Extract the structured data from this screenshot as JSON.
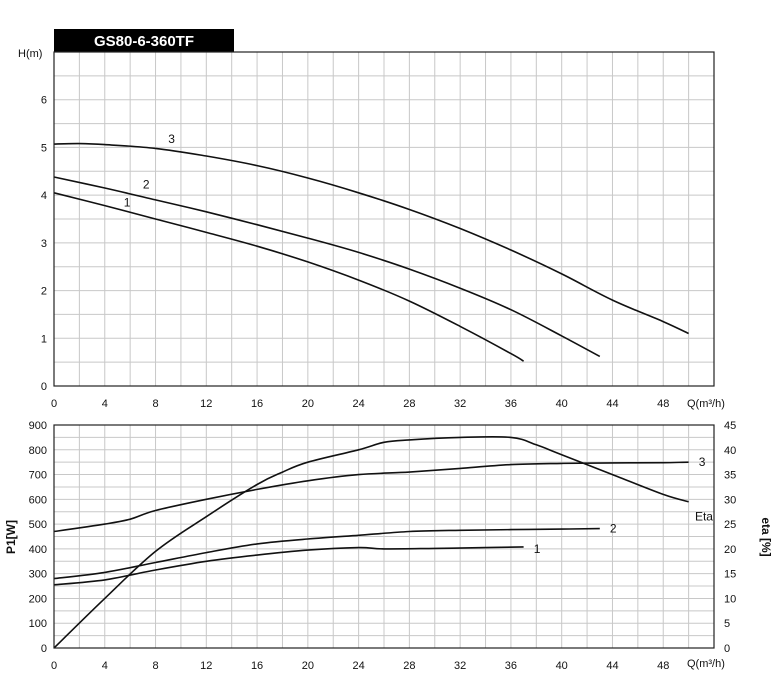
{
  "chart_data": [
    {
      "type": "line",
      "title": "GS80-6-360TF",
      "ylabel": "H(m)",
      "xlabel": "Q(m³/h)",
      "xlim": [
        0,
        52
      ],
      "ylim": [
        0,
        7
      ],
      "x_ticks": [
        0,
        4,
        8,
        12,
        16,
        20,
        24,
        28,
        32,
        36,
        40,
        44,
        48
      ],
      "y_ticks": [
        0,
        1,
        2,
        3,
        4,
        5,
        6
      ],
      "grid": true,
      "series": [
        {
          "name": "1",
          "x": [
            0,
            4,
            8,
            12,
            16,
            20,
            24,
            28,
            32,
            36,
            37
          ],
          "y": [
            4.05,
            3.78,
            3.5,
            3.22,
            2.93,
            2.6,
            2.22,
            1.78,
            1.25,
            0.68,
            0.52
          ]
        },
        {
          "name": "2",
          "x": [
            0,
            4,
            8,
            12,
            16,
            20,
            24,
            28,
            32,
            36,
            40,
            43
          ],
          "y": [
            4.38,
            4.15,
            3.9,
            3.65,
            3.38,
            3.1,
            2.8,
            2.45,
            2.05,
            1.6,
            1.05,
            0.62
          ]
        },
        {
          "name": "3",
          "x": [
            0,
            2,
            4,
            8,
            12,
            16,
            20,
            24,
            28,
            32,
            36,
            40,
            44,
            48,
            50
          ],
          "y": [
            5.07,
            5.08,
            5.06,
            4.98,
            4.82,
            4.62,
            4.36,
            4.05,
            3.7,
            3.3,
            2.85,
            2.35,
            1.8,
            1.35,
            1.1
          ]
        }
      ],
      "curve_labels": [
        {
          "text": "3",
          "x": 9,
          "y": 5.18
        },
        {
          "text": "2",
          "x": 7,
          "y": 4.22
        },
        {
          "text": "1",
          "x": 5.5,
          "y": 3.85
        }
      ]
    },
    {
      "type": "line",
      "xlabel": "Q(m³/h)",
      "ylabel": "P1[W]",
      "y2label": "eta [%]",
      "xlim": [
        0,
        52
      ],
      "ylim": [
        0,
        900
      ],
      "y2lim": [
        0,
        45
      ],
      "x_ticks": [
        0,
        4,
        8,
        12,
        16,
        20,
        24,
        28,
        32,
        36,
        40,
        44,
        48
      ],
      "y_ticks": [
        0,
        100,
        200,
        300,
        400,
        500,
        600,
        700,
        800,
        900
      ],
      "y2_ticks": [
        0,
        5,
        10,
        15,
        20,
        25,
        30,
        35,
        40,
        45
      ],
      "grid": true,
      "series": [
        {
          "name": "1",
          "axis": "left",
          "x": [
            0,
            4,
            8,
            12,
            16,
            20,
            24,
            26,
            30,
            34,
            37
          ],
          "y": [
            255,
            275,
            315,
            350,
            375,
            395,
            405,
            400,
            402,
            405,
            408
          ]
        },
        {
          "name": "2",
          "axis": "left",
          "x": [
            0,
            4,
            8,
            12,
            16,
            20,
            24,
            28,
            32,
            36,
            40,
            43
          ],
          "y": [
            280,
            305,
            345,
            385,
            420,
            440,
            455,
            470,
            475,
            478,
            480,
            482
          ]
        },
        {
          "name": "3",
          "axis": "left",
          "x": [
            0,
            4,
            6,
            8,
            12,
            16,
            20,
            24,
            28,
            32,
            36,
            40,
            44,
            48,
            50
          ],
          "y": [
            470,
            500,
            520,
            555,
            600,
            640,
            675,
            700,
            710,
            725,
            740,
            745,
            747,
            748,
            750
          ]
        },
        {
          "name": "Eta",
          "axis": "right",
          "x": [
            0,
            4,
            8,
            12,
            16,
            18,
            20,
            24,
            26,
            28,
            32,
            36,
            38,
            40,
            44,
            48,
            50
          ],
          "y": [
            0,
            10,
            19.5,
            26.5,
            33,
            35.5,
            37.5,
            40,
            41.5,
            42,
            42.5,
            42.5,
            41,
            39,
            35,
            31,
            29.5
          ]
        }
      ],
      "curve_labels": [
        {
          "text": "3",
          "x": 50.8,
          "axis": "left",
          "y": 750
        },
        {
          "text": "2",
          "x": 43.8,
          "axis": "left",
          "y": 482
        },
        {
          "text": "1",
          "x": 37.8,
          "axis": "left",
          "y": 400
        },
        {
          "text": "Eta",
          "x": 50.5,
          "axis": "right",
          "y": 26.5
        }
      ]
    }
  ]
}
